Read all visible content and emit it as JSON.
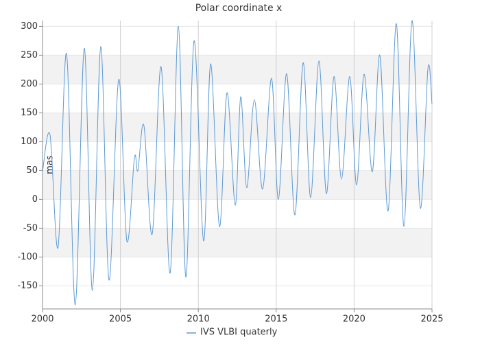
{
  "chart_data": {
    "type": "line",
    "title": "Polar coordinate x",
    "ylabel": "mas",
    "xlim": [
      2000,
      2025
    ],
    "xticks": [
      2000,
      2005,
      2010,
      2015,
      2020,
      2025
    ],
    "ylim": [
      -190,
      310
    ],
    "yticks": [
      -150,
      -100,
      -50,
      0,
      50,
      100,
      150,
      200,
      250,
      300
    ],
    "grid": true,
    "legend": "bottom",
    "series": [
      {
        "name": "IVS VLBI quaterly",
        "color": "#5b9bd5",
        "x": [
          2000.0,
          2000.48,
          2001.0,
          2001.54,
          2002.1,
          2002.68,
          2003.2,
          2003.74,
          2004.27,
          2004.89,
          2005.41,
          2005.9,
          2006.12,
          2006.51,
          2007.04,
          2007.61,
          2008.19,
          2008.72,
          2009.2,
          2009.73,
          2010.34,
          2010.79,
          2011.36,
          2011.84,
          2012.37,
          2012.72,
          2013.11,
          2013.6,
          2014.13,
          2014.7,
          2015.14,
          2015.67,
          2016.2,
          2016.73,
          2017.21,
          2017.74,
          2018.22,
          2018.71,
          2019.19,
          2019.72,
          2020.16,
          2020.64,
          2021.17,
          2021.65,
          2022.18,
          2022.71,
          2023.2,
          2023.72,
          2024.25,
          2024.74,
          2025.0
        ],
        "values": [
          48,
          112,
          -83,
          253,
          -183,
          262,
          -158,
          265,
          -140,
          208,
          -72,
          72,
          50,
          128,
          -60,
          230,
          -128,
          300,
          -135,
          275,
          -72,
          235,
          -47,
          185,
          -10,
          178,
          20,
          173,
          18,
          210,
          0,
          218,
          -27,
          237,
          3,
          240,
          10,
          213,
          35,
          213,
          25,
          217,
          48,
          250,
          -20,
          305,
          -47,
          310,
          -15,
          227,
          165
        ]
      }
    ]
  }
}
